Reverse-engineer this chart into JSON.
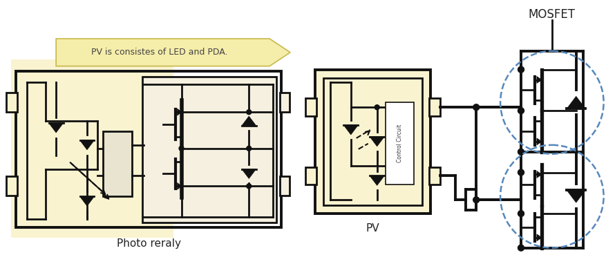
{
  "bg_color": "#ffffff",
  "box_bg_yellow": "#faf3d0",
  "line_color": "#111111",
  "dashed_circle_color": "#5588bb",
  "text_color": "#444444",
  "label_photo_reraly": "Photo reraly",
  "label_pv": "PV",
  "label_mosfet": "MOSFET",
  "label_arrow": "PV is consistes of LED and PDA.",
  "label_control": "Control Circuit",
  "arrow_fill": "#f5edaa",
  "arrow_edge": "#c8b84a"
}
